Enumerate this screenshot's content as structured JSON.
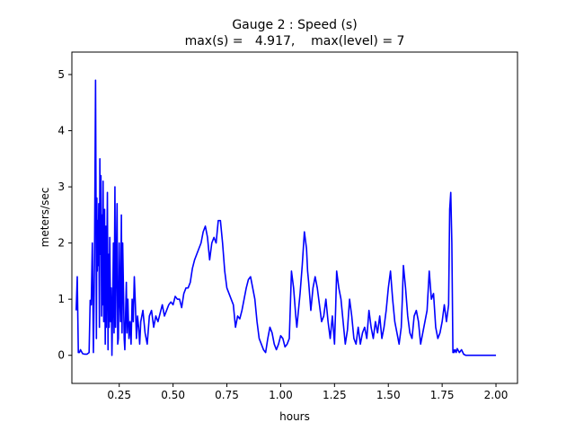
{
  "chart_data": {
    "type": "line",
    "title_line1": "Gauge 2 : Speed (s)",
    "title_line2": "max(s) =   4.917,    max(level) = 7",
    "xlabel": "hours",
    "ylabel": "meters/sec",
    "xlim": [
      0.03,
      2.1
    ],
    "ylim": [
      -0.5,
      5.4
    ],
    "xticks": [
      0.25,
      0.5,
      0.75,
      1.0,
      1.25,
      1.5,
      1.75,
      2.0
    ],
    "xtick_labels": [
      "0.25",
      "0.50",
      "0.75",
      "1.00",
      "1.25",
      "1.50",
      "1.75",
      "2.00"
    ],
    "yticks": [
      0,
      1,
      2,
      3,
      4,
      5
    ],
    "ytick_labels": [
      "0",
      "1",
      "2",
      "3",
      "4",
      "5"
    ],
    "grid": false,
    "legend": false,
    "series": [
      {
        "color": "#0000ff",
        "x": [
          0.05,
          0.055,
          0.06,
          0.065,
          0.07,
          0.08,
          0.09,
          0.1,
          0.11,
          0.115,
          0.12,
          0.125,
          0.13,
          0.135,
          0.14,
          0.142,
          0.144,
          0.146,
          0.148,
          0.15,
          0.152,
          0.155,
          0.158,
          0.16,
          0.162,
          0.165,
          0.168,
          0.17,
          0.172,
          0.175,
          0.178,
          0.18,
          0.182,
          0.185,
          0.188,
          0.19,
          0.192,
          0.195,
          0.198,
          0.2,
          0.203,
          0.206,
          0.21,
          0.213,
          0.216,
          0.22,
          0.223,
          0.226,
          0.23,
          0.233,
          0.236,
          0.24,
          0.243,
          0.246,
          0.25,
          0.253,
          0.256,
          0.26,
          0.263,
          0.266,
          0.27,
          0.273,
          0.276,
          0.28,
          0.283,
          0.286,
          0.29,
          0.295,
          0.3,
          0.305,
          0.31,
          0.315,
          0.32,
          0.325,
          0.33,
          0.335,
          0.34,
          0.345,
          0.35,
          0.36,
          0.37,
          0.38,
          0.39,
          0.4,
          0.41,
          0.42,
          0.43,
          0.44,
          0.45,
          0.46,
          0.47,
          0.48,
          0.49,
          0.5,
          0.51,
          0.52,
          0.53,
          0.54,
          0.55,
          0.56,
          0.57,
          0.58,
          0.59,
          0.6,
          0.61,
          0.62,
          0.63,
          0.64,
          0.65,
          0.66,
          0.67,
          0.68,
          0.69,
          0.7,
          0.71,
          0.72,
          0.73,
          0.74,
          0.75,
          0.76,
          0.77,
          0.78,
          0.79,
          0.8,
          0.81,
          0.82,
          0.83,
          0.84,
          0.85,
          0.86,
          0.87,
          0.88,
          0.89,
          0.9,
          0.91,
          0.92,
          0.93,
          0.94,
          0.95,
          0.96,
          0.97,
          0.98,
          0.99,
          1.0,
          1.01,
          1.02,
          1.03,
          1.04,
          1.05,
          1.06,
          1.07,
          1.075,
          1.08,
          1.09,
          1.1,
          1.11,
          1.12,
          1.125,
          1.13,
          1.14,
          1.15,
          1.16,
          1.17,
          1.18,
          1.19,
          1.2,
          1.21,
          1.22,
          1.23,
          1.24,
          1.25,
          1.255,
          1.26,
          1.27,
          1.28,
          1.29,
          1.3,
          1.31,
          1.32,
          1.33,
          1.34,
          1.35,
          1.36,
          1.37,
          1.38,
          1.39,
          1.4,
          1.41,
          1.42,
          1.43,
          1.44,
          1.45,
          1.46,
          1.47,
          1.48,
          1.49,
          1.5,
          1.51,
          1.52,
          1.53,
          1.54,
          1.55,
          1.56,
          1.565,
          1.57,
          1.58,
          1.59,
          1.6,
          1.61,
          1.62,
          1.63,
          1.64,
          1.65,
          1.66,
          1.67,
          1.68,
          1.69,
          1.7,
          1.71,
          1.72,
          1.73,
          1.74,
          1.75,
          1.76,
          1.77,
          1.78,
          1.785,
          1.79,
          1.795,
          1.8,
          1.802,
          1.805,
          1.81,
          1.815,
          1.82,
          1.83,
          1.84,
          1.85,
          1.86,
          1.87,
          1.88,
          1.9,
          1.95,
          2.0
        ],
        "y": [
          0.8,
          1.4,
          0.05,
          0.05,
          0.1,
          0.03,
          0.02,
          0.02,
          0.05,
          0.98,
          0.9,
          2.0,
          0.05,
          1.6,
          4.9,
          3.0,
          0.3,
          2.8,
          1.5,
          2.4,
          1.6,
          2.7,
          0.5,
          3.5,
          1.8,
          3.2,
          0.7,
          2.5,
          0.9,
          3.1,
          0.6,
          1.2,
          2.6,
          0.2,
          2.3,
          0.5,
          1.6,
          2.9,
          0.1,
          1.8,
          0.5,
          2.1,
          0.6,
          1.2,
          0.0,
          1.0,
          2.0,
          0.4,
          3.0,
          0.5,
          1.5,
          2.7,
          0.2,
          0.3,
          2.0,
          1.0,
          0.6,
          2.5,
          0.4,
          2.0,
          1.1,
          0.3,
          0.1,
          0.8,
          1.3,
          0.4,
          1.0,
          0.3,
          0.6,
          0.2,
          1.0,
          0.6,
          1.4,
          0.9,
          0.3,
          0.7,
          0.5,
          0.2,
          0.6,
          0.8,
          0.4,
          0.2,
          0.7,
          0.8,
          0.5,
          0.7,
          0.6,
          0.75,
          0.9,
          0.7,
          0.8,
          0.9,
          0.95,
          0.9,
          1.05,
          1.0,
          1.0,
          0.85,
          1.1,
          1.2,
          1.2,
          1.3,
          1.55,
          1.7,
          1.8,
          1.9,
          2.0,
          2.2,
          2.3,
          2.1,
          1.7,
          2.0,
          2.1,
          2.0,
          2.4,
          2.4,
          2.0,
          1.5,
          1.2,
          1.1,
          1.0,
          0.9,
          0.5,
          0.7,
          0.65,
          0.8,
          1.0,
          1.2,
          1.35,
          1.4,
          1.2,
          1.0,
          0.6,
          0.3,
          0.2,
          0.1,
          0.05,
          0.3,
          0.5,
          0.4,
          0.2,
          0.1,
          0.2,
          0.35,
          0.3,
          0.15,
          0.2,
          0.3,
          1.5,
          1.2,
          0.7,
          0.5,
          0.7,
          1.1,
          1.6,
          2.2,
          1.9,
          1.5,
          1.3,
          0.8,
          1.2,
          1.4,
          1.2,
          0.9,
          0.6,
          0.7,
          1.0,
          0.6,
          0.3,
          0.7,
          0.2,
          0.8,
          1.5,
          1.2,
          1.0,
          0.6,
          0.2,
          0.45,
          1.0,
          0.7,
          0.3,
          0.2,
          0.5,
          0.2,
          0.4,
          0.5,
          0.3,
          0.8,
          0.5,
          0.3,
          0.6,
          0.4,
          0.7,
          0.3,
          0.5,
          0.8,
          1.2,
          1.5,
          1.0,
          0.6,
          0.4,
          0.2,
          0.5,
          1.0,
          1.6,
          1.2,
          0.7,
          0.4,
          0.3,
          0.7,
          0.8,
          0.6,
          0.2,
          0.4,
          0.6,
          0.8,
          1.5,
          1.0,
          1.1,
          0.5,
          0.3,
          0.4,
          0.6,
          0.9,
          0.6,
          0.9,
          2.6,
          2.9,
          2.0,
          0.05,
          0.1,
          0.05,
          0.1,
          0.05,
          0.12,
          0.05,
          0.1,
          0.02,
          0.0,
          0.0,
          0.0,
          0.0,
          0.0,
          0.0
        ]
      }
    ]
  }
}
